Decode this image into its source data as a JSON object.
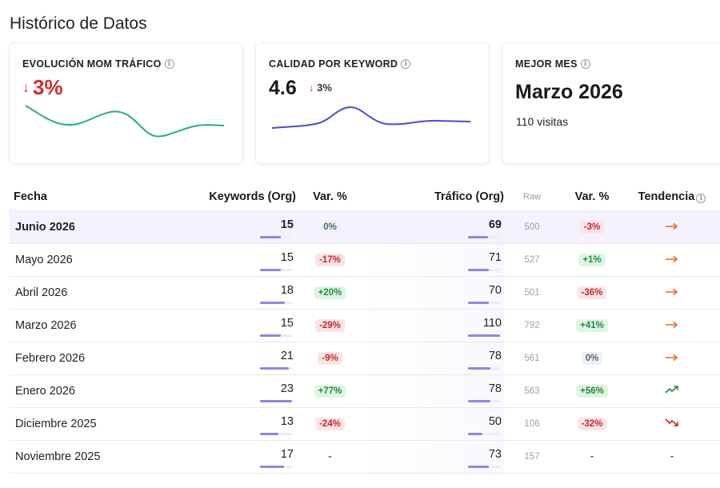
{
  "page": {
    "title": "Histórico de Datos"
  },
  "cards": {
    "mom": {
      "label": "EVOLUCIÓN MOM TRÁFICO",
      "value": "3%",
      "arrow": "↓"
    },
    "quality": {
      "label": "CALIDAD POR KEYWORD",
      "value": "4.6",
      "delta": "3%",
      "arrow": "↓"
    },
    "best": {
      "label": "MEJOR MES",
      "month": "Marzo 2026",
      "visits": "110 visitas"
    }
  },
  "colors": {
    "accent": "#9b7fe0",
    "negative": "#d32f2f",
    "positive": "#1e8e3e",
    "spark_green": "#22b573",
    "spark_blue": "#4a4ae0",
    "trend_flat": "#e66a1e"
  },
  "table": {
    "headers": {
      "date": "Fecha",
      "keywords": "Keywords (Org)",
      "kw_var": "Var. %",
      "traffic": "Tráfico (Org)",
      "raw": "Raw",
      "tr_var": "Var. %",
      "trend": "Tendencia"
    },
    "rows": [
      {
        "date": "Junio 2026",
        "keywords": "15",
        "kw_bar": 0.65,
        "kw_var": "0%",
        "kw_var_type": "zero",
        "traffic": "69",
        "tr_bar": 0.63,
        "raw": "500",
        "tr_var": "-3%",
        "tr_var_type": "neg",
        "trend": "flat"
      },
      {
        "date": "Mayo 2026",
        "keywords": "15",
        "kw_bar": 0.65,
        "kw_var": "-17%",
        "kw_var_type": "neg",
        "traffic": "71",
        "tr_bar": 0.65,
        "raw": "527",
        "tr_var": "+1%",
        "tr_var_type": "pos",
        "trend": "flat"
      },
      {
        "date": "Abril 2026",
        "keywords": "18",
        "kw_bar": 0.78,
        "kw_var": "+20%",
        "kw_var_type": "pos",
        "traffic": "70",
        "tr_bar": 0.64,
        "raw": "501",
        "tr_var": "-36%",
        "tr_var_type": "neg",
        "trend": "flat"
      },
      {
        "date": "Marzo 2026",
        "keywords": "15",
        "kw_bar": 0.65,
        "kw_var": "-29%",
        "kw_var_type": "neg",
        "traffic": "110",
        "tr_bar": 1.0,
        "raw": "792",
        "tr_var": "+41%",
        "tr_var_type": "pos",
        "trend": "flat"
      },
      {
        "date": "Febrero 2026",
        "keywords": "21",
        "kw_bar": 0.91,
        "kw_var": "-9%",
        "kw_var_type": "neg",
        "traffic": "78",
        "tr_bar": 0.71,
        "raw": "561",
        "tr_var": "0%",
        "tr_var_type": "zero",
        "trend": "flat"
      },
      {
        "date": "Enero 2026",
        "keywords": "23",
        "kw_bar": 1.0,
        "kw_var": "+77%",
        "kw_var_type": "pos",
        "traffic": "78",
        "tr_bar": 0.71,
        "raw": "563",
        "tr_var": "+56%",
        "tr_var_type": "pos",
        "trend": "up"
      },
      {
        "date": "Diciembre 2025",
        "keywords": "13",
        "kw_bar": 0.57,
        "kw_var": "-24%",
        "kw_var_type": "neg",
        "traffic": "50",
        "tr_bar": 0.45,
        "raw": "106",
        "tr_var": "-32%",
        "tr_var_type": "neg",
        "trend": "down"
      },
      {
        "date": "Noviembre 2025",
        "keywords": "17",
        "kw_bar": 0.74,
        "kw_var": "-",
        "kw_var_type": "none",
        "traffic": "73",
        "tr_bar": 0.66,
        "raw": "157",
        "tr_var": "-",
        "tr_var_type": "none",
        "trend": "none"
      }
    ]
  },
  "trend_icons": {
    "flat": "arrow-right-icon",
    "up": "trending-up-icon",
    "down": "trending-down-icon",
    "none": "-"
  }
}
